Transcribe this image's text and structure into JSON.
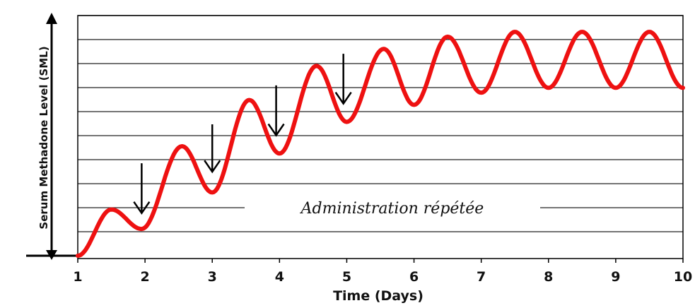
{
  "chart_data": {
    "type": "line",
    "xlabel": "Time (Days)",
    "ylabel": "Serum Methadone Level (SML)",
    "annotation": "Administration répétée",
    "x_ticks": [
      "1",
      "2",
      "3",
      "4",
      "5",
      "6",
      "7",
      "8",
      "9",
      "10"
    ],
    "xlim": [
      1,
      10
    ],
    "ylim": [
      0,
      9
    ],
    "grid": true,
    "series": [
      {
        "color": "#ee1111",
        "points": [
          [
            1.0,
            0.0
          ],
          [
            1.5,
            1.9
          ],
          [
            1.95,
            1.1
          ],
          [
            2.55,
            4.5
          ],
          [
            3.0,
            2.6
          ],
          [
            3.55,
            6.4
          ],
          [
            4.0,
            4.2
          ],
          [
            4.55,
            7.8
          ],
          [
            5.0,
            5.5
          ],
          [
            5.55,
            8.5
          ],
          [
            6.0,
            6.2
          ],
          [
            6.5,
            9.0
          ],
          [
            7.0,
            6.7
          ],
          [
            7.5,
            9.2
          ],
          [
            8.0,
            6.9
          ],
          [
            8.5,
            9.2
          ],
          [
            9.0,
            6.9
          ],
          [
            9.5,
            9.2
          ],
          [
            10.0,
            6.9
          ]
        ]
      }
    ],
    "dose_arrows": [
      {
        "x": 1.95,
        "top": 3.8,
        "tip": 1.75
      },
      {
        "x": 3.0,
        "top": 5.4,
        "tip": 3.45
      },
      {
        "x": 3.95,
        "top": 7.0,
        "tip": 4.95
      },
      {
        "x": 4.95,
        "top": 8.3,
        "tip": 6.25
      }
    ]
  }
}
